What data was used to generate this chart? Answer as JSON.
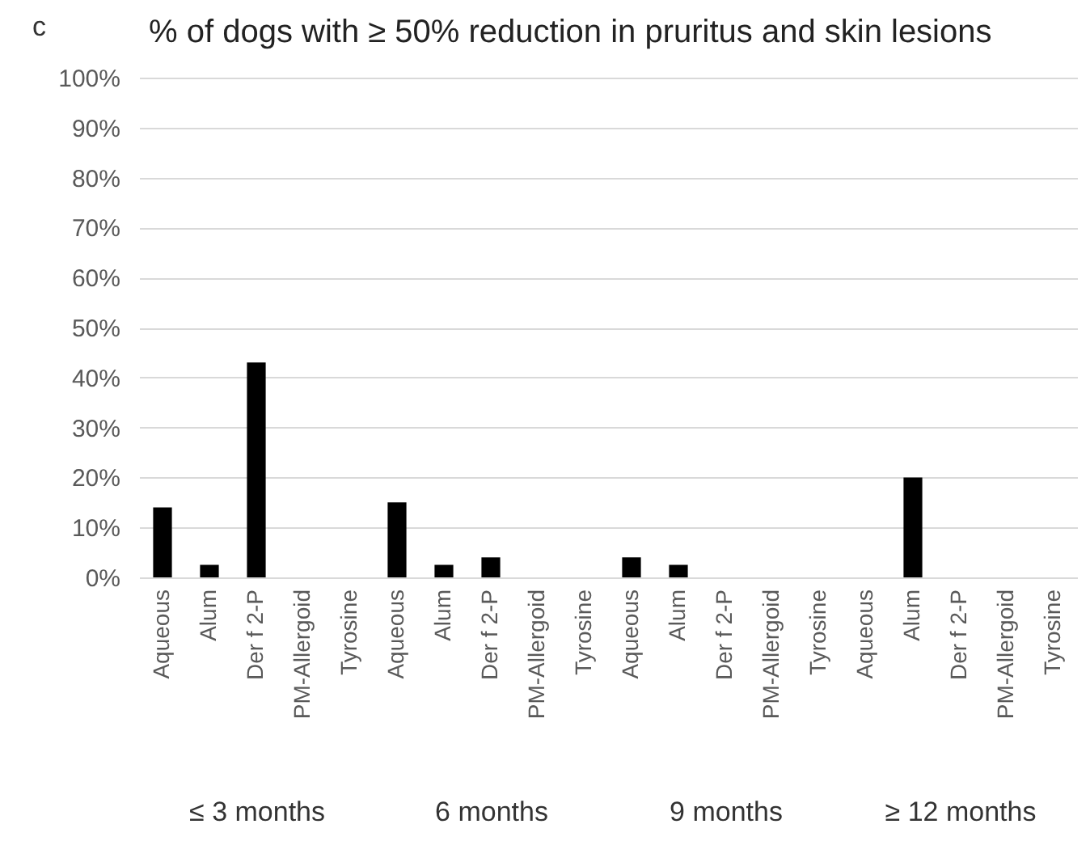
{
  "chart_data": [
    {
      "type": "bar",
      "title": "% of dogs with ≥ 50% reduction in pruritus and skin lesions",
      "annotations": [
        "c"
      ],
      "xlabel": "≤ 3 months",
      "categories": [
        "Aqueous",
        "Alum",
        "Der f 2-P",
        "PM-Allergoid",
        "Tyrosine"
      ],
      "values": [
        14,
        2.5,
        43,
        0,
        0
      ],
      "color": "#000000",
      "ylim": [
        0,
        100
      ],
      "yticks": [
        {
          "value": 0,
          "label": "0%"
        },
        {
          "value": 10,
          "label": "10%"
        },
        {
          "value": 20,
          "label": "20%"
        },
        {
          "value": 30,
          "label": "30%"
        },
        {
          "value": 40,
          "label": "40%"
        },
        {
          "value": 50,
          "label": "50%"
        },
        {
          "value": 60,
          "label": "60%"
        },
        {
          "value": 70,
          "label": "70%"
        },
        {
          "value": 80,
          "label": "80%"
        },
        {
          "value": 90,
          "label": "90%"
        },
        {
          "value": 100,
          "label": "100%"
        }
      ],
      "grid": "y"
    },
    {
      "type": "bar",
      "xlabel": "6 months",
      "categories": [
        "Aqueous",
        "Alum",
        "Der f 2-P",
        "PM-Allergoid",
        "Tyrosine"
      ],
      "values": [
        15,
        2.5,
        4,
        0,
        0
      ],
      "color": "#000000",
      "ylim": [
        0,
        100
      ],
      "yticks": [
        0,
        10,
        20,
        30,
        40,
        50,
        60,
        70,
        80,
        90,
        100
      ],
      "grid": "y",
      "tick_labels": "x"
    },
    {
      "type": "bar",
      "xlabel": "9 months",
      "categories": [
        "Aqueous",
        "Alum",
        "Der f 2-P",
        "PM-Allergoid",
        "Tyrosine"
      ],
      "values": [
        4,
        2.5,
        0,
        0,
        0
      ],
      "color": "#000000",
      "ylim": [
        0,
        100
      ],
      "yticks": [
        0,
        10,
        20,
        30,
        40,
        50,
        60,
        70,
        80,
        90,
        100
      ],
      "grid": "y",
      "tick_labels": "x"
    },
    {
      "type": "bar",
      "xlabel": "≥ 12 months",
      "categories": [
        "Aqueous",
        "Alum",
        "Der f 2-P",
        "PM-Allergoid",
        "Tyrosine"
      ],
      "values": [
        0,
        20,
        0,
        0,
        0
      ],
      "color": "#000000",
      "ylim": [
        0,
        100
      ],
      "yticks": [
        0,
        10,
        20,
        30,
        40,
        50,
        60,
        70,
        80,
        90,
        100
      ],
      "grid": "y",
      "tick_labels": "x"
    }
  ]
}
